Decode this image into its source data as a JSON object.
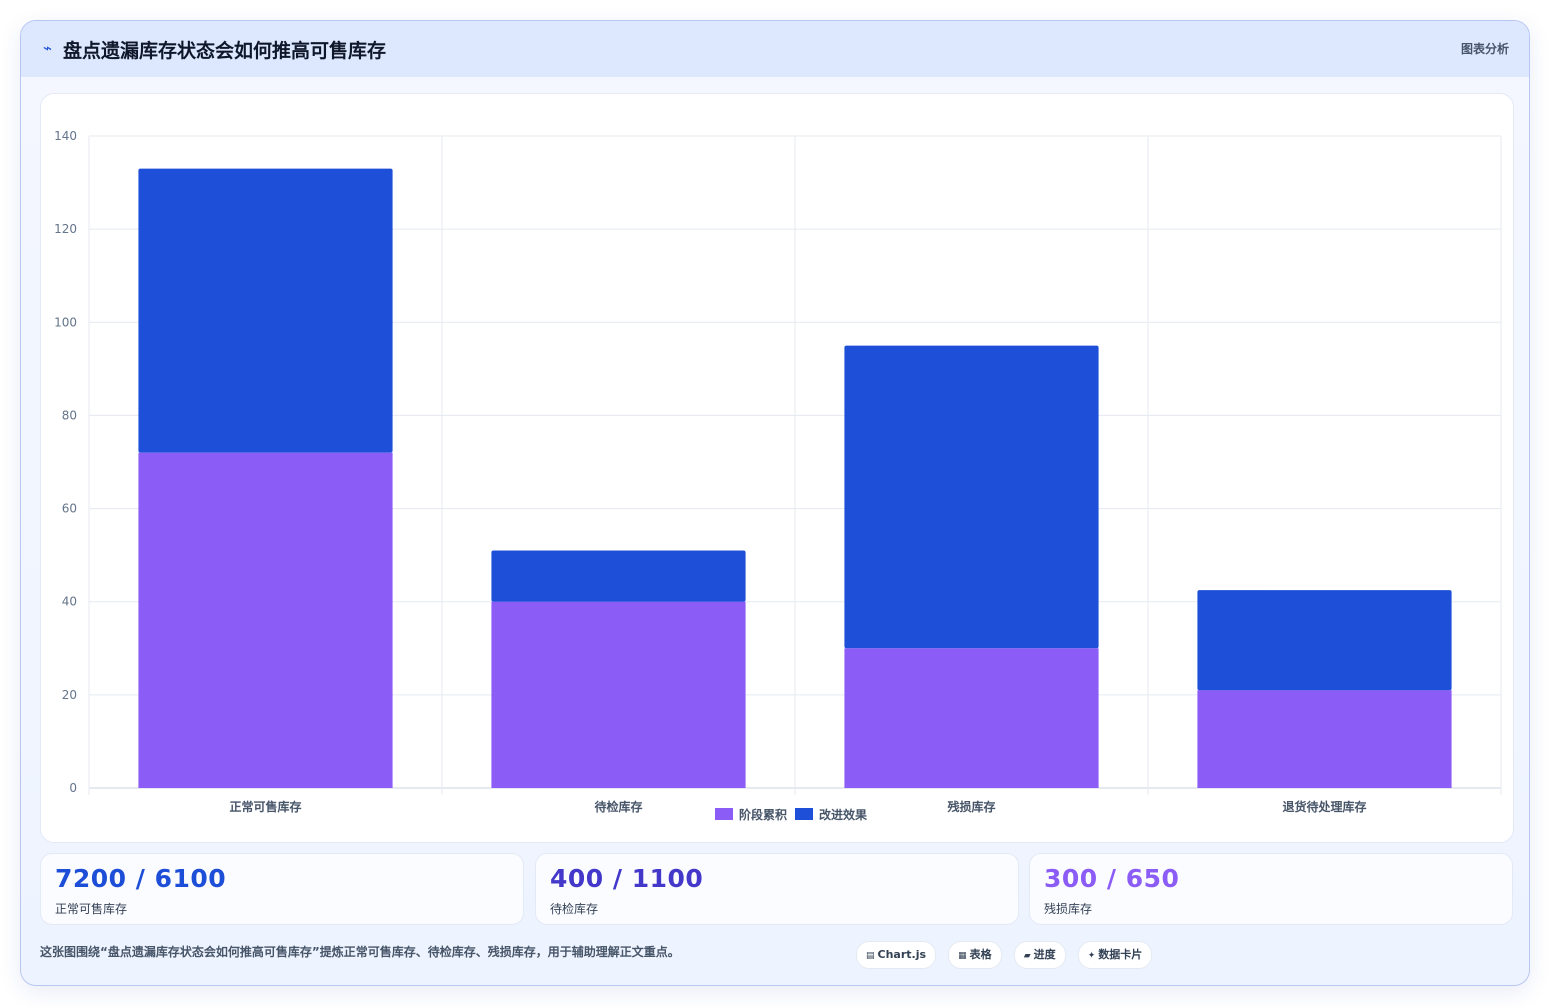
{
  "header": {
    "icon": "wave-icon",
    "title": "盘点遗漏库存状态会如何推高可售库存",
    "tag": "图表分析"
  },
  "chart_data": {
    "type": "bar",
    "stacked": true,
    "categories": [
      "正常可售库存",
      "待检库存",
      "残损库存",
      "退货待处理库存"
    ],
    "series": [
      {
        "name": "阶段累积",
        "color": "#8b5cf6",
        "values": [
          72,
          40,
          30,
          21
        ]
      },
      {
        "name": "改进效果",
        "color": "#1d4fd8",
        "values": [
          61,
          11,
          65,
          21.5
        ]
      }
    ],
    "ylim": [
      0,
      140
    ],
    "yticks": [
      0,
      20,
      40,
      60,
      80,
      100,
      120,
      140
    ],
    "grid": true,
    "legend": "bottom"
  },
  "stats": [
    {
      "value": "7200 / 6100",
      "label": "正常可售库存",
      "color": "#1d4ed8"
    },
    {
      "value": "400 / 1100",
      "label": "待检库存",
      "color": "#4338ca"
    },
    {
      "value": "300 / 650",
      "label": "残损库存",
      "color": "#8b5cf6"
    }
  ],
  "footer": {
    "note": "这张图围绕“盘点遗漏库存状态会如何推高可售库存”提炼正常可售库存、待检库存、残损库存，用于辅助理解正文重点。",
    "chips": [
      {
        "icon": "▤",
        "label": "Chart.js"
      },
      {
        "icon": "▦",
        "label": "表格"
      },
      {
        "icon": "▰",
        "label": "进度"
      },
      {
        "icon": "✦",
        "label": "数据卡片"
      }
    ]
  }
}
